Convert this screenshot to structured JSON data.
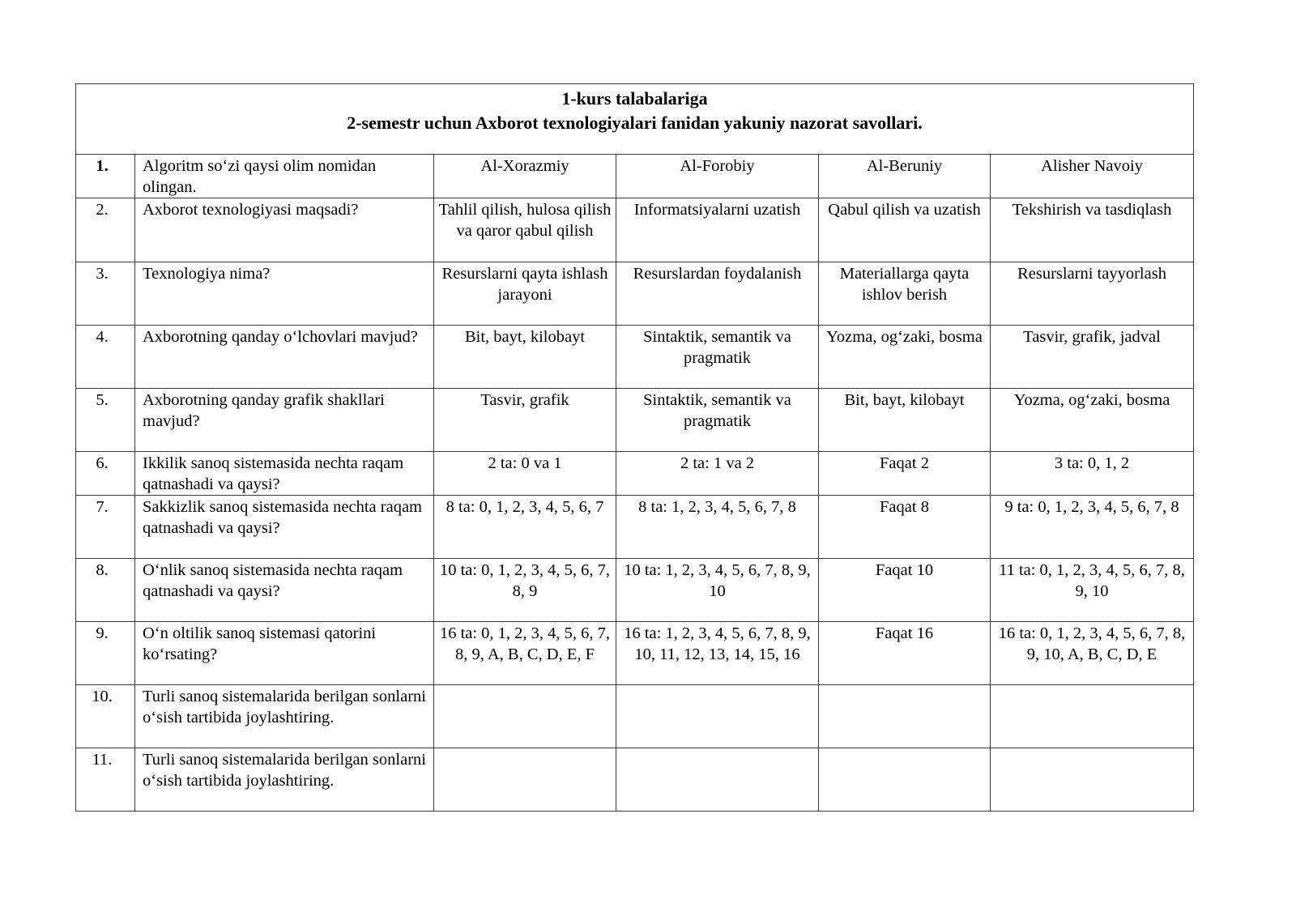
{
  "title": {
    "line1": "1-kurs talabalariga",
    "line2": "2-semestr uchun Axborot texnologiyalari fanidan yakuniy nazorat savollari."
  },
  "rows": [
    {
      "num": "1.",
      "question": "Algoritm so‘zi qaysi olim nomidan olingan.",
      "answers": [
        "Al-Xorazmiy",
        "Al-Forobiy",
        "Al-Beruniy",
        "Alisher Navoiy"
      ]
    },
    {
      "num": "2.",
      "question": "Axborot texnologiyasi maqsadi?",
      "answers": [
        "Tahlil qilish, hulosa qilish va qaror qabul qilish",
        "Informatsiyalarni uzatish",
        "Qabul qilish va uzatish",
        "Tekshirish va tasdiqlash"
      ]
    },
    {
      "num": "3.",
      "question": "Texnologiya nima?",
      "answers": [
        "Resurslarni qayta ishlash jarayoni",
        "Resurslardan foydalanish",
        "Materiallarga qayta ishlov berish",
        "Resurslarni tayyorlash"
      ]
    },
    {
      "num": "4.",
      "question": "Axborotning qanday o‘lchovlari mavjud?",
      "answers": [
        "Bit, bayt, kilobayt",
        "Sintaktik, semantik va pragmatik",
        "Yozma, og‘zaki, bosma",
        "Tasvir, grafik, jadval"
      ]
    },
    {
      "num": "5.",
      "question": "Axborotning qanday grafik shakllari mavjud?",
      "answers": [
        "Tasvir, grafik",
        "Sintaktik, semantik va pragmatik",
        "Bit, bayt, kilobayt",
        "Yozma, og‘zaki, bosma"
      ]
    },
    {
      "num": "6.",
      "question": "Ikkilik sanoq sistemasida nechta raqam qatnashadi va qaysi?",
      "answers": [
        "2 ta: 0 va 1",
        "2 ta: 1 va 2",
        "Faqat 2",
        "3 ta: 0, 1, 2"
      ]
    },
    {
      "num": "7.",
      "question": "Sakkizlik sanoq sistemasida nechta raqam qatnashadi va qaysi?",
      "answers": [
        "8 ta: 0, 1, 2, 3, 4, 5, 6, 7",
        "8 ta: 1, 2, 3, 4, 5, 6, 7, 8",
        "Faqat 8",
        "9 ta: 0, 1, 2, 3, 4, 5, 6, 7, 8"
      ]
    },
    {
      "num": "8.",
      "question": "O‘nlik sanoq sistemasida nechta raqam qatnashadi va qaysi?",
      "answers": [
        "10 ta: 0, 1, 2, 3, 4, 5, 6, 7, 8, 9",
        "10 ta: 1, 2, 3, 4, 5, 6, 7, 8, 9, 10",
        "Faqat 10",
        "11 ta: 0, 1, 2, 3, 4, 5, 6, 7, 8, 9, 10"
      ]
    },
    {
      "num": "9.",
      "question": "O‘n oltilik sanoq sistemasi qatorini ko‘rsating?",
      "answers": [
        "16 ta: 0, 1, 2, 3, 4, 5, 6, 7, 8, 9, A, B, C, D, E, F",
        "16 ta: 1, 2, 3, 4, 5, 6, 7, 8, 9, 10, 11, 12, 13, 14, 15, 16",
        "Faqat 16",
        "16 ta: 0, 1, 2, 3, 4, 5, 6, 7, 8, 9, 10, A, B, C, D, E"
      ]
    },
    {
      "num": "10.",
      "question": "Turli sanoq sistemalarida berilgan sonlarni o‘sish tartibida joylashtiring.",
      "answers": [
        "",
        "",
        "",
        ""
      ]
    },
    {
      "num": "11.",
      "question": "Turli sanoq sistemalarida berilgan sonlarni o‘sish tartibida joylashtiring.",
      "answers": [
        "",
        "",
        "",
        ""
      ]
    }
  ]
}
